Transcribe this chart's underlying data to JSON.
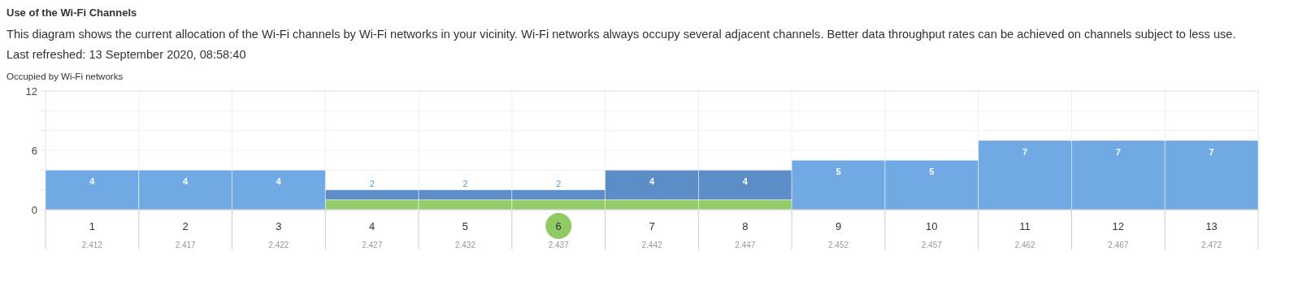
{
  "chart_data": {
    "type": "bar",
    "stacked": true,
    "title": "Use of the Wi-Fi Channels",
    "subtitle": "This diagram shows the current allocation of the Wi-Fi channels by Wi-Fi networks in your vicinity. Wi-Fi networks always occupy several adjacent channels. Better data throughput rates can be achieved on channels subject to less use.",
    "annotations": [
      "Last refreshed: 13 September 2020, 08:58:40"
    ],
    "ylabel": "Occupied by Wi-Fi networks",
    "categories": [
      "1\n2.412",
      "2\n2.417",
      "3\n2.422",
      "4\n2.427",
      "5\n2.432",
      "6\n2.437",
      "7\n2.442",
      "8\n2.447",
      "9\n2.452",
      "10\n2.457",
      "11\n2.462",
      "12\n2.467",
      "13\n2.472"
    ],
    "series": [
      {
        "color": "#8fca63",
        "values": [
          null,
          null,
          null,
          1,
          1,
          1,
          1,
          1,
          null,
          null,
          null,
          null,
          null
        ]
      },
      {
        "color": "#6ca6e3",
        "colors": [
          "#6ca6e3",
          "#6ca6e3",
          "#6ca6e3",
          "#5889c4",
          "#5889c4",
          "#5889c4",
          "#5889c4",
          "#5889c4",
          "#6ca6e3",
          "#6ca6e3",
          "#6ca6e3",
          "#6ca6e3",
          "#6ca6e3"
        ],
        "values": [
          4,
          4,
          4,
          1,
          1,
          1,
          3,
          3,
          5,
          5,
          7,
          7,
          7
        ]
      }
    ],
    "totals": [
      "4",
      "4",
      "4",
      "2",
      "2",
      "2",
      "4",
      "4",
      "5",
      "5",
      "7",
      "7",
      "7"
    ],
    "ylim": [
      0,
      12
    ],
    "yticks": [
      0,
      {
        "value": 2,
        "label": null
      },
      {
        "value": 4,
        "label": null
      },
      6,
      {
        "value": 8,
        "label": null
      },
      {
        "value": 10,
        "label": null
      },
      12
    ],
    "grid": true
  }
}
